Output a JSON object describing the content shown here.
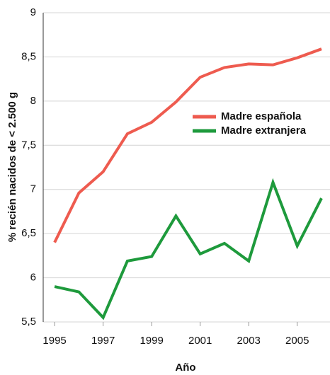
{
  "chart_data": {
    "type": "line",
    "x_label": "Año",
    "y_label": "% recién nacidos de < 2.500 g",
    "x": [
      1995,
      1996,
      1997,
      1998,
      1999,
      2000,
      2001,
      2002,
      2003,
      2004,
      2005,
      2006
    ],
    "series": [
      {
        "name": "Madre española",
        "color": "#ee5b4f",
        "values": [
          6.4,
          6.96,
          7.2,
          7.63,
          7.76,
          7.99,
          8.27,
          8.38,
          8.42,
          8.41,
          8.49,
          8.59
        ]
      },
      {
        "name": "Madre extranjera",
        "color": "#1e9a3c",
        "values": [
          5.9,
          5.84,
          5.55,
          6.19,
          6.24,
          6.7,
          6.27,
          6.39,
          6.19,
          7.08,
          6.36,
          6.9
        ]
      }
    ],
    "xlim": [
      1994.53,
      2006.35
    ],
    "xticks": [
      1995,
      1997,
      1999,
      2001,
      2003,
      2005
    ],
    "ylim": [
      5.5,
      9
    ],
    "yticks": [
      {
        "value": 5.5,
        "label": "5,5"
      },
      6,
      {
        "value": 6.5,
        "label": "6,5"
      },
      7,
      {
        "value": 7.5,
        "label": "7,5"
      },
      8,
      {
        "value": 8.5,
        "label": "8,5"
      },
      9
    ],
    "grid": true,
    "legend": "center-right"
  }
}
